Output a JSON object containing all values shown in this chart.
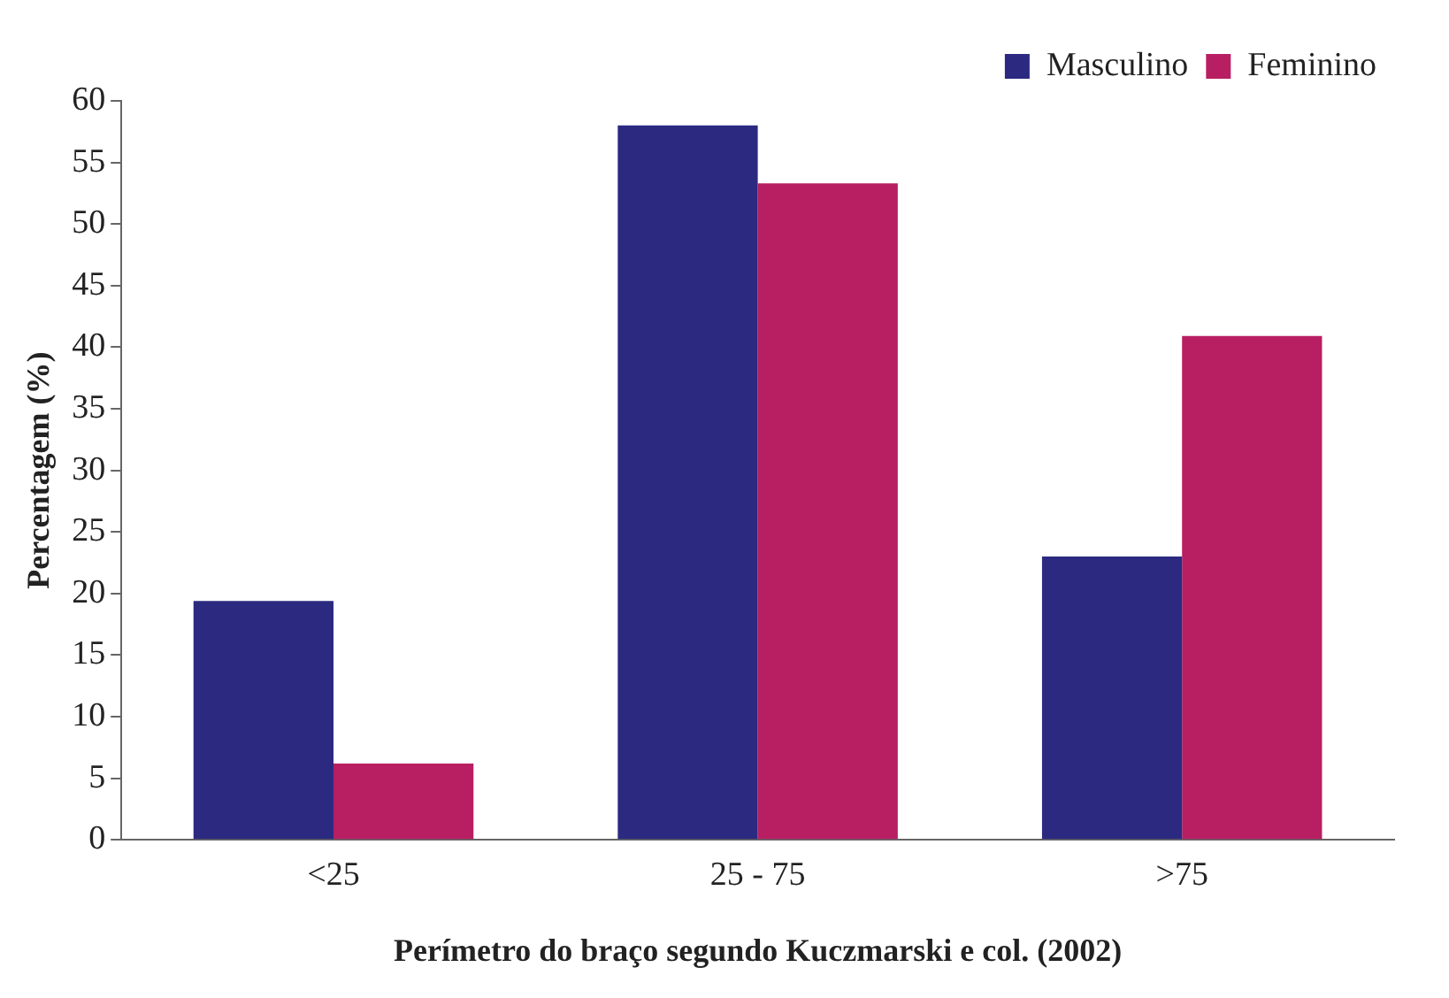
{
  "chart_data": {
    "type": "bar",
    "xlabel": "Perímetro do braço segundo Kuczmarski e col. (2002)",
    "ylabel": "Percentagem (%)",
    "categories": [
      "<25",
      "25 - 75",
      ">75"
    ],
    "series": [
      {
        "name": "Masculino",
        "color": "#2b2a80",
        "values": [
          19.4,
          58,
          23
        ]
      },
      {
        "name": "Feminino",
        "color": "#b81f63",
        "values": [
          6.2,
          53.3,
          40.9
        ]
      }
    ],
    "ylim": [
      0,
      60
    ],
    "yticks": [
      0,
      5,
      10,
      15,
      20,
      25,
      30,
      35,
      40,
      45,
      50,
      55,
      60
    ],
    "grid": false,
    "legend": "top right"
  }
}
